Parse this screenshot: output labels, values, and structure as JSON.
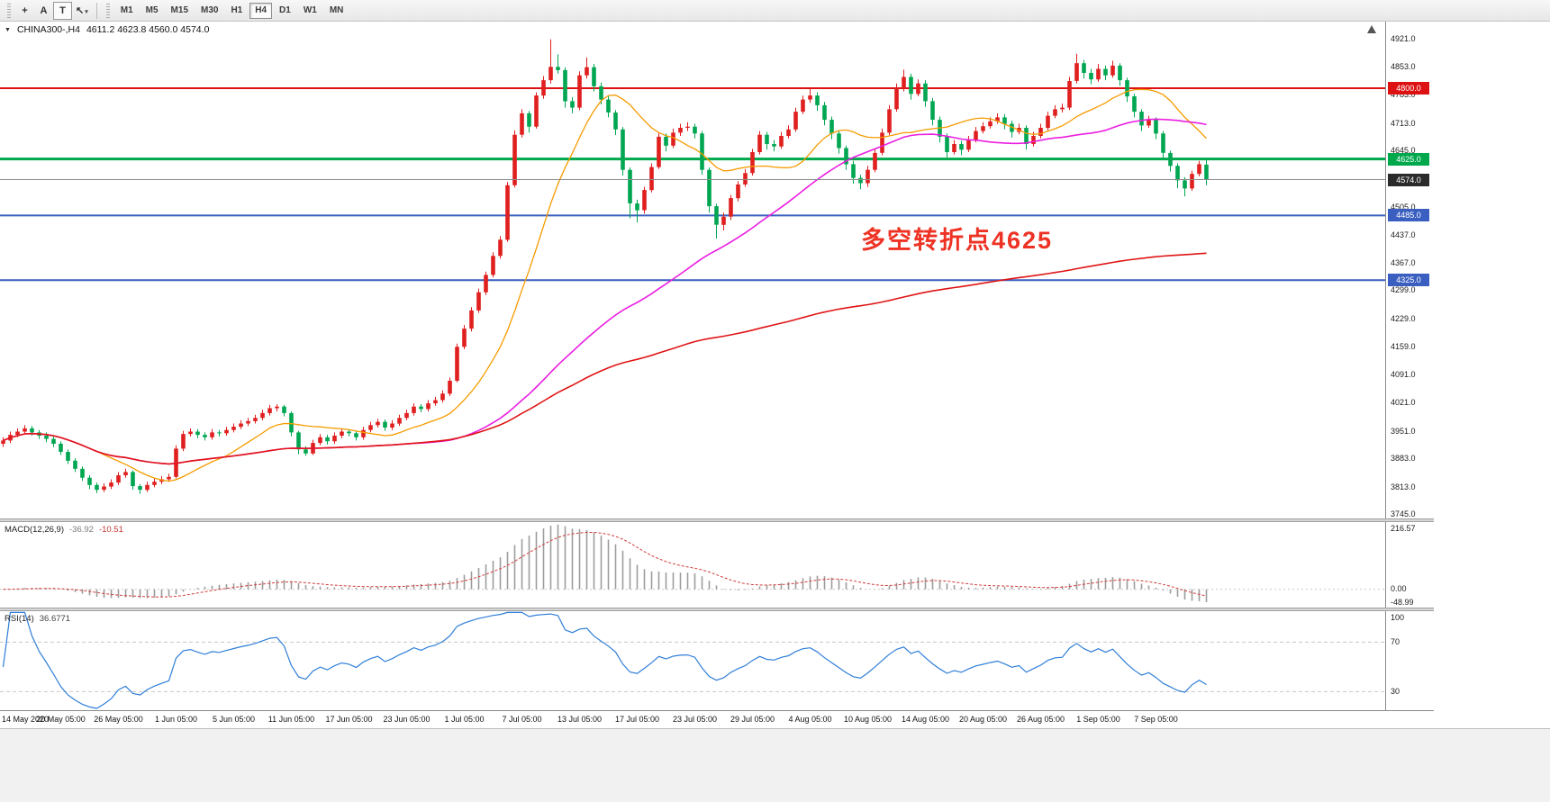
{
  "ui": {
    "toolbar": {
      "tools": [
        {
          "name": "crosshair-icon",
          "glyph": "+"
        },
        {
          "name": "text-tool-icon",
          "glyph": "A"
        },
        {
          "name": "label-tool-icon",
          "glyph": "T",
          "boxed": true
        },
        {
          "name": "arrows-dropdown-icon",
          "glyph": "↖",
          "dropdown": "▾"
        }
      ],
      "timeframes": [
        {
          "label": "M1"
        },
        {
          "label": "M5"
        },
        {
          "label": "M15"
        },
        {
          "label": "M30"
        },
        {
          "label": "H1"
        },
        {
          "label": "H4",
          "active": true
        },
        {
          "label": "D1"
        },
        {
          "label": "W1"
        },
        {
          "label": "MN"
        }
      ]
    },
    "title_marker": "▼",
    "shift_marker": "▲"
  },
  "chart_data": {
    "type": "candlestick",
    "symbol": "CHINA300-",
    "period": "H4",
    "title": "CHINA300-,H4",
    "ohlc_display": "4611.2 4623.8 4560.0 4574.0",
    "price_range": [
      3735,
      4965
    ],
    "y_ticks": [
      4921,
      4853,
      4783,
      4713,
      4645,
      4575,
      4505,
      4437,
      4367,
      4299,
      4229,
      4159,
      4091,
      4021,
      3951,
      3883,
      3813,
      3745
    ],
    "colors": {
      "up": "#e01f1f",
      "down": "#00a651",
      "bid_line": "#8c8c8c"
    },
    "hlines": [
      {
        "price": 4800,
        "label": "4800.0",
        "color": "#dd1111",
        "width": 2,
        "object": true
      },
      {
        "price": 4625,
        "label": "4625.0",
        "color": "#00a84c",
        "width": 3,
        "object": true
      },
      {
        "price": 4574,
        "label": "4574.0",
        "color": "#8c8c8c",
        "width": 1,
        "object": false,
        "label_bg": "#2b2b2b"
      },
      {
        "price": 4485,
        "label": "4485.0",
        "color": "#3a5fc0",
        "width": 2,
        "object": true
      },
      {
        "price": 4325,
        "label": "4325.0",
        "color": "#3a5fc0",
        "width": 2,
        "object": true
      }
    ],
    "annotation": {
      "text": "多空转折点4625",
      "color": "#ee3224"
    },
    "moving_averages": [
      {
        "name": "ma-fast-orange",
        "period": 14,
        "color": "#f59b00",
        "width": 1.3
      },
      {
        "name": "ma-mid-magenta",
        "period": 56,
        "color": "#ea1fe0",
        "width": 1.6
      },
      {
        "name": "ma-slow-red",
        "period": 170,
        "color": "#e01515",
        "width": 1.6
      }
    ],
    "x_labels": [
      {
        "text": "14 May 2020",
        "bar": 0
      },
      {
        "text": "20 May 05:00",
        "bar": 8
      },
      {
        "text": "26 May 05:00",
        "bar": 16
      },
      {
        "text": "1 Jun 05:00",
        "bar": 24
      },
      {
        "text": "5 Jun 05:00",
        "bar": 32
      },
      {
        "text": "11 Jun 05:00",
        "bar": 40
      },
      {
        "text": "17 Jun 05:00",
        "bar": 48
      },
      {
        "text": "23 Jun 05:00",
        "bar": 56
      },
      {
        "text": "1 Jul 05:00",
        "bar": 64
      },
      {
        "text": "7 Jul 05:00",
        "bar": 72
      },
      {
        "text": "13 Jul 05:00",
        "bar": 80
      },
      {
        "text": "17 Jul 05:00",
        "bar": 88
      },
      {
        "text": "23 Jul 05:00",
        "bar": 96
      },
      {
        "text": "29 Jul 05:00",
        "bar": 104
      },
      {
        "text": "4 Aug 05:00",
        "bar": 112
      },
      {
        "text": "10 Aug 05:00",
        "bar": 120
      },
      {
        "text": "14 Aug 05:00",
        "bar": 128
      },
      {
        "text": "20 Aug 05:00",
        "bar": 136
      },
      {
        "text": "26 Aug 05:00",
        "bar": 144
      },
      {
        "text": "1 Sep 05:00",
        "bar": 152
      },
      {
        "text": "7 Sep 05:00",
        "bar": 160
      }
    ],
    "candles": [
      [
        3920,
        3936,
        3912,
        3928
      ],
      [
        3928,
        3950,
        3922,
        3942
      ],
      [
        3942,
        3958,
        3936,
        3950
      ],
      [
        3950,
        3966,
        3944,
        3958
      ],
      [
        3958,
        3964,
        3940,
        3948
      ],
      [
        3948,
        3954,
        3932,
        3940
      ],
      [
        3940,
        3948,
        3924,
        3932
      ],
      [
        3932,
        3938,
        3912,
        3920
      ],
      [
        3920,
        3926,
        3892,
        3900
      ],
      [
        3900,
        3906,
        3870,
        3878
      ],
      [
        3878,
        3884,
        3850,
        3858
      ],
      [
        3858,
        3864,
        3828,
        3836
      ],
      [
        3836,
        3842,
        3808,
        3818
      ],
      [
        3818,
        3824,
        3798,
        3806
      ],
      [
        3806,
        3822,
        3800,
        3814
      ],
      [
        3814,
        3832,
        3808,
        3824
      ],
      [
        3824,
        3850,
        3818,
        3842
      ],
      [
        3842,
        3858,
        3836,
        3850
      ],
      [
        3850,
        3854,
        3806,
        3815
      ],
      [
        3815,
        3820,
        3796,
        3806
      ],
      [
        3806,
        3826,
        3800,
        3818
      ],
      [
        3818,
        3834,
        3812,
        3826
      ],
      [
        3826,
        3840,
        3820,
        3832
      ],
      [
        3832,
        3846,
        3826,
        3838
      ],
      [
        3838,
        3916,
        3834,
        3908
      ],
      [
        3908,
        3952,
        3902,
        3944
      ],
      [
        3944,
        3958,
        3938,
        3950
      ],
      [
        3950,
        3956,
        3934,
        3942
      ],
      [
        3942,
        3948,
        3928,
        3936
      ],
      [
        3936,
        3956,
        3930,
        3948
      ],
      [
        3948,
        3954,
        3938,
        3946
      ],
      [
        3946,
        3962,
        3940,
        3954
      ],
      [
        3954,
        3970,
        3948,
        3962
      ],
      [
        3962,
        3978,
        3956,
        3970
      ],
      [
        3970,
        3984,
        3964,
        3976
      ],
      [
        3976,
        3992,
        3970,
        3984
      ],
      [
        3984,
        4004,
        3978,
        3996
      ],
      [
        3996,
        4016,
        3990,
        4008
      ],
      [
        4008,
        4018,
        4000,
        4012
      ],
      [
        4012,
        4016,
        3988,
        3996
      ],
      [
        3996,
        4000,
        3938,
        3948
      ],
      [
        3948,
        3952,
        3894,
        3906
      ],
      [
        3906,
        3914,
        3890,
        3896
      ],
      [
        3896,
        3930,
        3892,
        3922
      ],
      [
        3922,
        3944,
        3916,
        3936
      ],
      [
        3936,
        3942,
        3918,
        3926
      ],
      [
        3926,
        3948,
        3920,
        3940
      ],
      [
        3940,
        3958,
        3934,
        3950
      ],
      [
        3950,
        3956,
        3938,
        3946
      ],
      [
        3946,
        3952,
        3928,
        3936
      ],
      [
        3936,
        3962,
        3930,
        3954
      ],
      [
        3954,
        3974,
        3948,
        3966
      ],
      [
        3966,
        3982,
        3960,
        3974
      ],
      [
        3974,
        3980,
        3952,
        3960
      ],
      [
        3960,
        3978,
        3954,
        3970
      ],
      [
        3970,
        3992,
        3964,
        3984
      ],
      [
        3984,
        4004,
        3978,
        3996
      ],
      [
        3996,
        4020,
        3990,
        4012
      ],
      [
        4012,
        4018,
        3998,
        4006
      ],
      [
        4006,
        4028,
        4000,
        4020
      ],
      [
        4020,
        4036,
        4014,
        4028
      ],
      [
        4028,
        4052,
        4022,
        4044
      ],
      [
        4044,
        4084,
        4038,
        4076
      ],
      [
        4076,
        4168,
        4072,
        4160
      ],
      [
        4160,
        4214,
        4154,
        4205
      ],
      [
        4205,
        4258,
        4198,
        4250
      ],
      [
        4250,
        4304,
        4244,
        4295
      ],
      [
        4295,
        4346,
        4288,
        4338
      ],
      [
        4338,
        4394,
        4332,
        4385
      ],
      [
        4385,
        4434,
        4378,
        4425
      ],
      [
        4425,
        4568,
        4420,
        4560
      ],
      [
        4560,
        4696,
        4554,
        4685
      ],
      [
        4685,
        4748,
        4678,
        4738
      ],
      [
        4738,
        4744,
        4690,
        4705
      ],
      [
        4705,
        4790,
        4700,
        4782
      ],
      [
        4782,
        4830,
        4774,
        4820
      ],
      [
        4820,
        4921,
        4812,
        4853
      ],
      [
        4853,
        4884,
        4836,
        4845
      ],
      [
        4845,
        4852,
        4752,
        4768
      ],
      [
        4768,
        4778,
        4738,
        4752
      ],
      [
        4752,
        4842,
        4746,
        4832
      ],
      [
        4832,
        4876,
        4824,
        4852
      ],
      [
        4852,
        4860,
        4792,
        4805
      ],
      [
        4805,
        4814,
        4760,
        4772
      ],
      [
        4772,
        4780,
        4728,
        4740
      ],
      [
        4740,
        4746,
        4684,
        4698
      ],
      [
        4698,
        4704,
        4584,
        4598
      ],
      [
        4598,
        4604,
        4478,
        4515
      ],
      [
        4515,
        4524,
        4468,
        4498
      ],
      [
        4498,
        4556,
        4490,
        4548
      ],
      [
        4548,
        4614,
        4542,
        4605
      ],
      [
        4605,
        4690,
        4600,
        4680
      ],
      [
        4680,
        4688,
        4644,
        4658
      ],
      [
        4658,
        4700,
        4652,
        4690
      ],
      [
        4690,
        4712,
        4682,
        4702
      ],
      [
        4702,
        4716,
        4694,
        4705
      ],
      [
        4705,
        4712,
        4676,
        4688
      ],
      [
        4688,
        4694,
        4586,
        4598
      ],
      [
        4598,
        4604,
        4492,
        4508
      ],
      [
        4508,
        4514,
        4428,
        4462
      ],
      [
        4462,
        4492,
        4448,
        4482
      ],
      [
        4482,
        4536,
        4474,
        4528
      ],
      [
        4528,
        4570,
        4520,
        4562
      ],
      [
        4562,
        4600,
        4556,
        4590
      ],
      [
        4590,
        4650,
        4584,
        4642
      ],
      [
        4642,
        4694,
        4636,
        4685
      ],
      [
        4685,
        4692,
        4648,
        4662
      ],
      [
        4662,
        4672,
        4644,
        4656
      ],
      [
        4656,
        4692,
        4650,
        4682
      ],
      [
        4682,
        4708,
        4676,
        4698
      ],
      [
        4698,
        4752,
        4692,
        4742
      ],
      [
        4742,
        4782,
        4736,
        4772
      ],
      [
        4772,
        4800,
        4764,
        4782
      ],
      [
        4782,
        4790,
        4744,
        4758
      ],
      [
        4758,
        4766,
        4708,
        4722
      ],
      [
        4722,
        4730,
        4674,
        4688
      ],
      [
        4688,
        4696,
        4638,
        4652
      ],
      [
        4652,
        4658,
        4598,
        4612
      ],
      [
        4612,
        4620,
        4564,
        4578
      ],
      [
        4578,
        4586,
        4550,
        4565
      ],
      [
        4565,
        4608,
        4556,
        4598
      ],
      [
        4598,
        4650,
        4592,
        4640
      ],
      [
        4640,
        4700,
        4634,
        4690
      ],
      [
        4690,
        4758,
        4684,
        4748
      ],
      [
        4748,
        4812,
        4742,
        4800
      ],
      [
        4800,
        4846,
        4792,
        4828
      ],
      [
        4828,
        4836,
        4772,
        4786
      ],
      [
        4786,
        4822,
        4780,
        4812
      ],
      [
        4812,
        4820,
        4754,
        4768
      ],
      [
        4768,
        4776,
        4708,
        4722
      ],
      [
        4722,
        4730,
        4666,
        4680
      ],
      [
        4680,
        4688,
        4628,
        4642
      ],
      [
        4642,
        4672,
        4636,
        4662
      ],
      [
        4662,
        4670,
        4634,
        4648
      ],
      [
        4648,
        4682,
        4642,
        4672
      ],
      [
        4672,
        4704,
        4666,
        4694
      ],
      [
        4694,
        4716,
        4688,
        4706
      ],
      [
        4706,
        4728,
        4700,
        4718
      ],
      [
        4718,
        4738,
        4712,
        4728
      ],
      [
        4728,
        4736,
        4698,
        4712
      ],
      [
        4712,
        4720,
        4678,
        4692
      ],
      [
        4692,
        4712,
        4686,
        4702
      ],
      [
        4702,
        4708,
        4648,
        4662
      ],
      [
        4662,
        4692,
        4656,
        4682
      ],
      [
        4682,
        4712,
        4676,
        4702
      ],
      [
        4702,
        4742,
        4696,
        4732
      ],
      [
        4732,
        4758,
        4726,
        4748
      ],
      [
        4748,
        4762,
        4740,
        4752
      ],
      [
        4752,
        4828,
        4746,
        4818
      ],
      [
        4818,
        4885,
        4812,
        4862
      ],
      [
        4862,
        4870,
        4824,
        4838
      ],
      [
        4838,
        4848,
        4810,
        4822
      ],
      [
        4822,
        4860,
        4816,
        4848
      ],
      [
        4848,
        4856,
        4820,
        4832
      ],
      [
        4832,
        4868,
        4826,
        4856
      ],
      [
        4856,
        4862,
        4806,
        4820
      ],
      [
        4820,
        4826,
        4766,
        4780
      ],
      [
        4780,
        4786,
        4728,
        4742
      ],
      [
        4742,
        4748,
        4694,
        4708
      ],
      [
        4708,
        4732,
        4702,
        4722
      ],
      [
        4722,
        4728,
        4674,
        4688
      ],
      [
        4688,
        4694,
        4626,
        4640
      ],
      [
        4640,
        4646,
        4594,
        4608
      ],
      [
        4608,
        4614,
        4552,
        4572
      ],
      [
        4572,
        4580,
        4532,
        4552
      ],
      [
        4552,
        4596,
        4546,
        4588
      ],
      [
        4588,
        4620,
        4582,
        4612
      ],
      [
        4611,
        4624,
        4560,
        4574
      ]
    ],
    "indicators": {
      "macd": {
        "label": "MACD(12,26,9)",
        "value_main": "-36.92",
        "value_signal": "-10.51",
        "scale_top": "216.57",
        "scale_zero": "0.00",
        "scale_bottom": "-48.99",
        "fast": 12,
        "slow": 26,
        "signal": 9,
        "range": [
          -62,
          228
        ],
        "hist_color": "#9c9c9c",
        "signal_color": "#d23b3b"
      },
      "rsi": {
        "label": "RSI(14)",
        "value": "36.6771",
        "period": 14,
        "levels": [
          70,
          30
        ],
        "scale_labels": [
          "100",
          "70",
          "30"
        ],
        "color": "#2f7ed8",
        "range": [
          15,
          95
        ]
      }
    }
  }
}
